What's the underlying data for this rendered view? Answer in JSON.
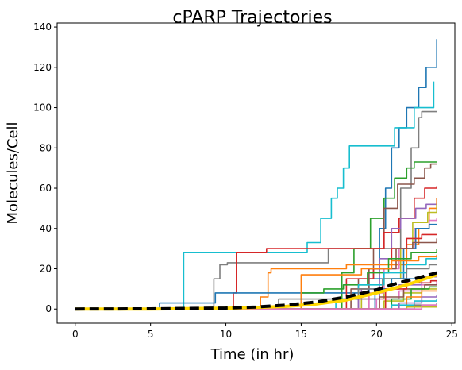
{
  "chart_data": {
    "type": "line",
    "title": "cPARP Trajectories",
    "xlabel": "Time (in hr)",
    "ylabel": "Molecules/Cell",
    "xlim": [
      -1.2,
      25.2
    ],
    "ylim": [
      -7,
      142
    ],
    "x_ticks": [
      0,
      5,
      10,
      15,
      20,
      25
    ],
    "y_ticks": [
      0,
      20,
      40,
      60,
      80,
      100,
      120,
      140
    ],
    "grid": false,
    "legend": "none",
    "series": [
      {
        "color": "#1f77b4",
        "step": true,
        "points": [
          [
            0,
            0
          ],
          [
            19,
            0
          ],
          [
            19.5,
            20
          ],
          [
            20.2,
            40
          ],
          [
            20.6,
            60
          ],
          [
            21,
            80
          ],
          [
            21.5,
            90
          ],
          [
            22,
            100
          ],
          [
            22.8,
            110
          ],
          [
            23.3,
            120
          ],
          [
            24,
            134
          ]
        ]
      },
      {
        "color": "#17becf",
        "step": true,
        "points": [
          [
            0,
            0
          ],
          [
            7,
            0
          ],
          [
            7.2,
            28
          ],
          [
            11.5,
            28
          ],
          [
            15.4,
            33
          ],
          [
            16.3,
            45
          ],
          [
            17,
            55
          ],
          [
            17.4,
            60
          ],
          [
            17.8,
            70
          ],
          [
            18.2,
            81
          ],
          [
            20.8,
            81
          ],
          [
            21.2,
            90
          ],
          [
            22.5,
            100
          ],
          [
            23.8,
            113
          ]
        ]
      },
      {
        "color": "#7f7f7f",
        "step": true,
        "points": [
          [
            0,
            0
          ],
          [
            8.7,
            0
          ],
          [
            9.2,
            15
          ],
          [
            9.6,
            22
          ],
          [
            10.1,
            23
          ],
          [
            16.2,
            23
          ],
          [
            16.8,
            30
          ],
          [
            21.6,
            60
          ],
          [
            22.3,
            80
          ],
          [
            22.8,
            95
          ],
          [
            23,
            98
          ],
          [
            24,
            98
          ]
        ]
      },
      {
        "color": "#2ca02c",
        "step": true,
        "points": [
          [
            0,
            0
          ],
          [
            17,
            0
          ],
          [
            17.7,
            18
          ],
          [
            18.5,
            30
          ],
          [
            19.6,
            45
          ],
          [
            20.5,
            55
          ],
          [
            21.2,
            65
          ],
          [
            22,
            70
          ],
          [
            22.5,
            73
          ],
          [
            24,
            73
          ]
        ]
      },
      {
        "color": "#8c564b",
        "step": true,
        "points": [
          [
            0,
            0
          ],
          [
            18,
            0
          ],
          [
            18.8,
            15
          ],
          [
            19.8,
            30
          ],
          [
            20.5,
            50
          ],
          [
            21.4,
            62
          ],
          [
            22.5,
            65
          ],
          [
            23.2,
            70
          ],
          [
            23.6,
            72
          ],
          [
            24,
            72
          ]
        ]
      },
      {
        "color": "#d62728",
        "step": true,
        "points": [
          [
            0,
            0
          ],
          [
            10,
            0
          ],
          [
            10.5,
            8
          ],
          [
            10.7,
            28
          ],
          [
            12.3,
            28
          ],
          [
            12.7,
            30
          ],
          [
            16,
            30
          ],
          [
            20.5,
            38
          ],
          [
            21.5,
            45
          ],
          [
            22.5,
            55
          ],
          [
            23.2,
            60
          ],
          [
            24,
            61
          ]
        ]
      },
      {
        "color": "#9467bd",
        "step": true,
        "points": [
          [
            0,
            0
          ],
          [
            18.6,
            0
          ],
          [
            19,
            10
          ],
          [
            20.2,
            25
          ],
          [
            21,
            40
          ],
          [
            21.6,
            45
          ],
          [
            22.6,
            50
          ],
          [
            23.3,
            52
          ],
          [
            24,
            55
          ]
        ]
      },
      {
        "color": "#ff7f0e",
        "step": true,
        "points": [
          [
            0,
            0
          ],
          [
            12,
            0
          ],
          [
            12.3,
            6
          ],
          [
            12.8,
            18
          ],
          [
            13,
            20
          ],
          [
            17.2,
            20
          ],
          [
            18,
            22
          ],
          [
            22,
            32
          ],
          [
            22.8,
            40
          ],
          [
            23.5,
            50
          ],
          [
            24,
            55
          ]
        ]
      },
      {
        "color": "#bcbd22",
        "step": true,
        "points": [
          [
            0,
            0
          ],
          [
            18.5,
            0
          ],
          [
            19,
            5
          ],
          [
            20.5,
            15
          ],
          [
            21.6,
            30
          ],
          [
            22.4,
            43
          ],
          [
            23.4,
            48
          ],
          [
            24,
            52
          ]
        ]
      },
      {
        "color": "#e377c2",
        "step": true,
        "points": [
          [
            0,
            0
          ],
          [
            19,
            0
          ],
          [
            19.5,
            8
          ],
          [
            20.5,
            20
          ],
          [
            21.5,
            30
          ],
          [
            22.5,
            40
          ],
          [
            23.5,
            44
          ],
          [
            24,
            45
          ]
        ]
      },
      {
        "color": "#1f77b4",
        "step": true,
        "points": [
          [
            0,
            0
          ],
          [
            5.4,
            0
          ],
          [
            5.6,
            3
          ],
          [
            9.2,
            3
          ],
          [
            9.3,
            8
          ],
          [
            16,
            8
          ],
          [
            19.5,
            15
          ],
          [
            21.8,
            30
          ],
          [
            22.6,
            40
          ],
          [
            23.5,
            42
          ],
          [
            24,
            42
          ]
        ]
      },
      {
        "color": "#d62728",
        "step": true,
        "points": [
          [
            0,
            0
          ],
          [
            17.2,
            0
          ],
          [
            18,
            15
          ],
          [
            19.8,
            20
          ],
          [
            21,
            30
          ],
          [
            22,
            35
          ],
          [
            23,
            37
          ],
          [
            24,
            37
          ]
        ]
      },
      {
        "color": "#8c564b",
        "step": true,
        "points": [
          [
            0,
            0
          ],
          [
            17.5,
            0
          ],
          [
            18.3,
            10
          ],
          [
            19.5,
            20
          ],
          [
            21.3,
            30
          ],
          [
            22.4,
            33
          ],
          [
            24,
            35
          ]
        ]
      },
      {
        "color": "#2ca02c",
        "step": true,
        "points": [
          [
            0,
            0
          ],
          [
            14.5,
            0
          ],
          [
            15,
            8
          ],
          [
            16.5,
            10
          ],
          [
            17.8,
            12
          ],
          [
            19.4,
            18
          ],
          [
            20.8,
            25
          ],
          [
            22.3,
            28
          ],
          [
            24,
            30
          ]
        ]
      },
      {
        "color": "#17becf",
        "step": true,
        "points": [
          [
            0,
            0
          ],
          [
            16,
            0
          ],
          [
            17.3,
            5
          ],
          [
            18.8,
            12
          ],
          [
            20.5,
            18
          ],
          [
            22,
            22
          ],
          [
            23.3,
            25
          ],
          [
            24,
            26
          ]
        ]
      },
      {
        "color": "#ff7f0e",
        "step": true,
        "points": [
          [
            0,
            0
          ],
          [
            14.6,
            0
          ],
          [
            15,
            17
          ],
          [
            18,
            17
          ],
          [
            19,
            20
          ],
          [
            21,
            24
          ],
          [
            22.8,
            26
          ],
          [
            24,
            27
          ]
        ]
      },
      {
        "color": "#7f7f7f",
        "step": true,
        "points": [
          [
            0,
            0
          ],
          [
            13.2,
            0
          ],
          [
            13.5,
            5
          ],
          [
            17.2,
            5
          ],
          [
            18.8,
            10
          ],
          [
            20.4,
            15
          ],
          [
            22,
            20
          ],
          [
            23.5,
            22
          ],
          [
            24,
            22
          ]
        ]
      },
      {
        "color": "#9467bd",
        "step": true,
        "points": [
          [
            0,
            0
          ],
          [
            18,
            0
          ],
          [
            18.8,
            5
          ],
          [
            20.2,
            10
          ],
          [
            21.5,
            12
          ],
          [
            23,
            16
          ],
          [
            24,
            18
          ]
        ]
      },
      {
        "color": "#e377c2",
        "step": true,
        "points": [
          [
            0,
            0
          ],
          [
            19,
            0
          ],
          [
            20,
            5
          ],
          [
            21.5,
            9
          ],
          [
            23,
            12
          ],
          [
            24,
            14
          ]
        ]
      },
      {
        "color": "#bcbd22",
        "step": true,
        "points": [
          [
            0,
            0
          ],
          [
            20,
            0
          ],
          [
            20.5,
            4
          ],
          [
            21.8,
            8
          ],
          [
            23,
            10
          ],
          [
            24,
            10
          ]
        ]
      },
      {
        "color": "#1f77b4",
        "step": true,
        "points": [
          [
            0,
            0
          ],
          [
            19.2,
            0
          ],
          [
            19.9,
            10
          ],
          [
            21,
            15
          ],
          [
            22.2,
            15
          ],
          [
            23.5,
            17
          ],
          [
            24,
            17
          ]
        ]
      },
      {
        "color": "#8c564b",
        "step": true,
        "points": [
          [
            0,
            0
          ],
          [
            19.5,
            0
          ],
          [
            20.2,
            6
          ],
          [
            21.8,
            10
          ],
          [
            23.2,
            12
          ],
          [
            24,
            12
          ]
        ]
      },
      {
        "color": "#2ca02c",
        "step": true,
        "points": [
          [
            0,
            0
          ],
          [
            20.5,
            0
          ],
          [
            21,
            5
          ],
          [
            22.3,
            10
          ],
          [
            23.5,
            11
          ],
          [
            24,
            11
          ]
        ]
      },
      {
        "color": "#d62728",
        "step": true,
        "points": [
          [
            0,
            0
          ],
          [
            19.8,
            0
          ],
          [
            20.6,
            10
          ],
          [
            22,
            13
          ],
          [
            23.6,
            14
          ],
          [
            24,
            14
          ]
        ]
      },
      {
        "color": "#ff7f0e",
        "step": true,
        "points": [
          [
            0,
            0
          ],
          [
            21.2,
            0
          ],
          [
            22,
            6
          ],
          [
            23,
            9
          ],
          [
            24,
            9
          ]
        ]
      },
      {
        "color": "#17becf",
        "step": true,
        "points": [
          [
            0,
            0
          ],
          [
            20.2,
            0
          ],
          [
            21,
            2
          ],
          [
            22.5,
            4
          ],
          [
            24,
            5
          ]
        ]
      },
      {
        "color": "#9467bd",
        "step": true,
        "points": [
          [
            0,
            0
          ],
          [
            20.8,
            0
          ],
          [
            21.5,
            3
          ],
          [
            23,
            6
          ],
          [
            24,
            7
          ]
        ]
      },
      {
        "color": "#7f7f7f",
        "step": true,
        "points": [
          [
            0,
            0
          ],
          [
            21.5,
            0
          ],
          [
            22.5,
            2
          ],
          [
            24,
            3
          ]
        ]
      },
      {
        "color": "#bcbd22",
        "step": true,
        "points": [
          [
            0,
            0
          ],
          [
            21,
            0
          ],
          [
            22,
            1
          ],
          [
            24,
            1
          ]
        ]
      },
      {
        "color": "#e377c2",
        "step": true,
        "points": [
          [
            0,
            0
          ],
          [
            22,
            0
          ],
          [
            23,
            2
          ],
          [
            24,
            2
          ]
        ]
      },
      {
        "color": "#ffd700",
        "step": false,
        "width": 4,
        "points": [
          [
            0,
            0
          ],
          [
            5,
            0
          ],
          [
            10,
            0.4
          ],
          [
            12,
            0.8
          ],
          [
            14,
            1.3
          ],
          [
            16,
            2.5
          ],
          [
            18,
            4.5
          ],
          [
            20,
            8
          ],
          [
            21,
            10
          ],
          [
            22,
            12
          ],
          [
            23,
            14.5
          ],
          [
            24,
            17
          ]
        ]
      },
      {
        "color": "#000000",
        "step": false,
        "width": 4,
        "dash": "12,6",
        "points": [
          [
            0,
            0
          ],
          [
            5,
            0.1
          ],
          [
            10,
            0.5
          ],
          [
            12,
            1
          ],
          [
            14,
            2
          ],
          [
            16,
            3.5
          ],
          [
            18,
            6
          ],
          [
            20,
            9.5
          ],
          [
            21,
            12
          ],
          [
            22,
            14
          ],
          [
            23,
            16
          ],
          [
            24,
            18
          ]
        ]
      }
    ]
  }
}
